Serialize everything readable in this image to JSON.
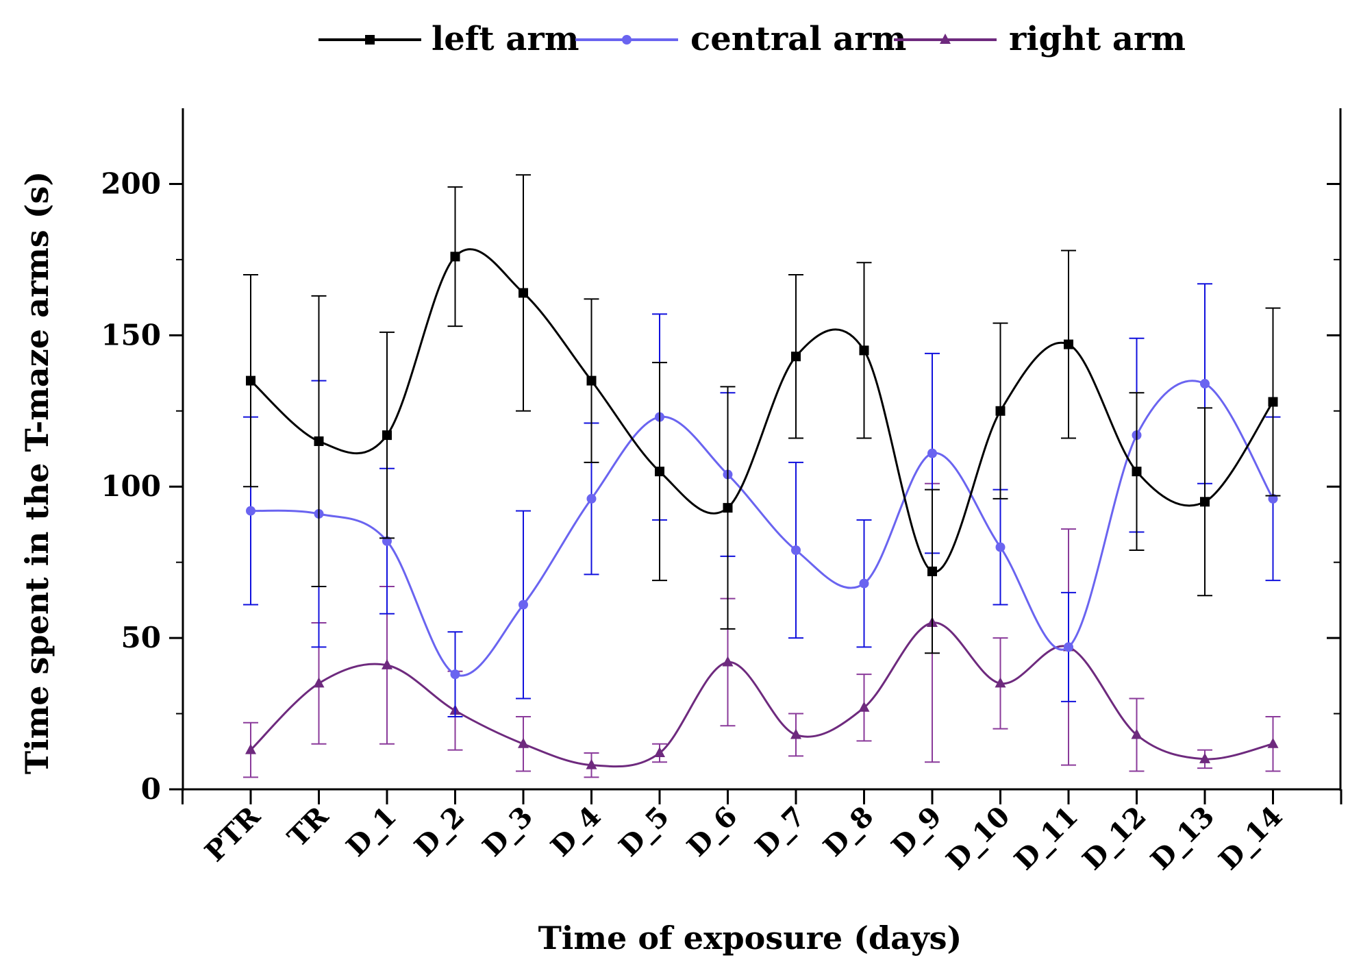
{
  "chart_data": {
    "type": "line",
    "title": "",
    "xlabel": "Time of exposure (days)",
    "ylabel": "Time spent in the T-maze arms (s)",
    "ylim": [
      0,
      225
    ],
    "yticks": [
      0,
      50,
      100,
      150,
      200
    ],
    "categories": [
      "PTR",
      "TR",
      "D_1",
      "D_2",
      "D_3",
      "D_4",
      "D_5",
      "D_6",
      "D_7",
      "D_8",
      "D_9",
      "D_10",
      "D_11",
      "D_12",
      "D_13",
      "D_14"
    ],
    "legend_position": "top",
    "grid": false,
    "smoothed_lines": true,
    "series": [
      {
        "name": "left arm",
        "color": "#000000",
        "marker": "square",
        "values": [
          135,
          115,
          117,
          176,
          164,
          135,
          105,
          93,
          143,
          145,
          72,
          125,
          147,
          105,
          95,
          128
        ],
        "error": [
          35,
          48,
          34,
          23,
          39,
          27,
          36,
          40,
          27,
          29,
          27,
          29,
          31,
          26,
          31,
          31
        ]
      },
      {
        "name": "central arm",
        "color": "#6a64f0",
        "error_color": "#1010dd",
        "marker": "circle",
        "values": [
          92,
          91,
          82,
          38,
          61,
          96,
          123,
          104,
          79,
          68,
          111,
          80,
          47,
          117,
          134,
          96
        ],
        "error": [
          31,
          44,
          24,
          14,
          31,
          25,
          34,
          27,
          29,
          21,
          33,
          19,
          18,
          32,
          33,
          27
        ]
      },
      {
        "name": "right arm",
        "color": "#6e2a7e",
        "error_color": "#8a3a9a",
        "marker": "triangle",
        "values": [
          13,
          35,
          41,
          26,
          15,
          8,
          12,
          42,
          18,
          27,
          55,
          35,
          47,
          18,
          10,
          15
        ],
        "error": [
          9,
          20,
          26,
          13,
          9,
          4,
          3,
          21,
          7,
          11,
          46,
          15,
          39,
          12,
          3,
          9
        ]
      }
    ]
  }
}
